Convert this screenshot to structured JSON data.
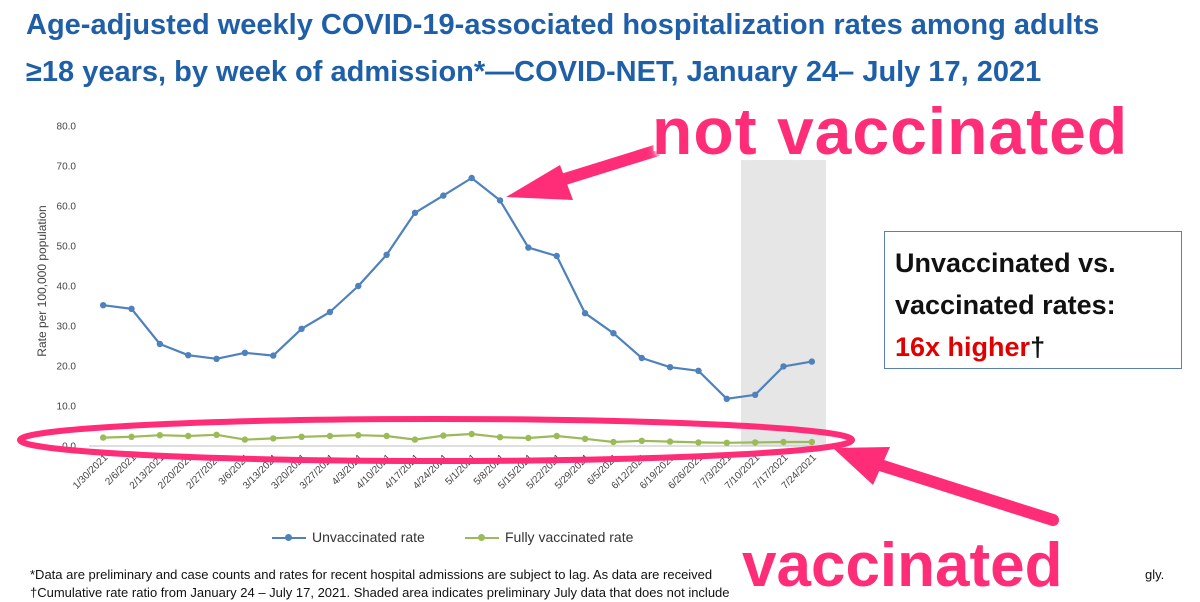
{
  "title": {
    "line1": "Age-adjusted weekly COVID-19-associated hospitalization rates among adults",
    "line2": "≥18 years, by week of admission*—COVID-NET, January 24– July 17, 2021"
  },
  "annotations": {
    "top": "not vaccinated",
    "bottom": "vaccinated"
  },
  "side_box": {
    "line1": "Unvaccinated vs.",
    "line2": "vaccinated rates:",
    "highlight": "16x higher",
    "dagger": "†"
  },
  "footnotes": {
    "line1": "*Data are preliminary and case counts and rates for recent hospital admissions are subject to lag. As data are received",
    "line1_end": "gly.",
    "line2": "†Cumulative rate ratio from January 24 – July 17, 2021. Shaded area indicates preliminary July data that does not include"
  },
  "colors": {
    "unvaccinated": "#4f81bd",
    "vaccinated": "#9bbb59",
    "shade": "#e6e6e6",
    "annotation": "#ff2d78",
    "title": "#1f5fa8",
    "highlight": "#e00000"
  },
  "chart_data": {
    "type": "line",
    "ylabel": "Rate per 100,000 population",
    "xlabel": "",
    "ylim": [
      0,
      80
    ],
    "yticks": [
      "0.0",
      "10.0",
      "20.0",
      "30.0",
      "40.0",
      "50.0",
      "60.0",
      "70.0",
      "80.0"
    ],
    "grid": false,
    "legend_position": "bottom",
    "shaded_region": {
      "from": "7/10/2021",
      "to": "7/24/2021",
      "label": "preliminary July data"
    },
    "categories": [
      "1/30/2021",
      "2/6/2021",
      "2/13/2021",
      "2/20/2021",
      "2/27/2021",
      "3/6/2021",
      "3/13/2021",
      "3/20/2021",
      "3/27/2021",
      "4/3/2021",
      "4/10/2021",
      "4/17/2021",
      "4/24/2021",
      "5/1/2021",
      "5/8/2021",
      "5/15/2021",
      "5/22/2021",
      "5/29/2021",
      "6/5/2021",
      "6/12/2021",
      "6/19/2021",
      "6/26/2021",
      "7/3/2021",
      "7/10/2021",
      "7/17/2021",
      "7/24/2021"
    ],
    "series": [
      {
        "name": "Unvaccinated rate",
        "values": [
          35.2,
          34.3,
          25.5,
          22.7,
          21.8,
          23.3,
          22.6,
          29.3,
          33.5,
          40.0,
          47.8,
          58.3,
          62.6,
          67.0,
          61.4,
          49.6,
          47.5,
          33.2,
          28.2,
          22.0,
          19.7,
          18.8,
          11.8,
          12.8,
          19.9,
          21.1
        ]
      },
      {
        "name": "Fully vaccinated rate",
        "values": [
          2.1,
          2.3,
          2.7,
          2.5,
          2.8,
          1.6,
          1.9,
          2.3,
          2.5,
          2.7,
          2.5,
          1.6,
          2.6,
          3.0,
          2.2,
          2.0,
          2.5,
          1.8,
          1.0,
          1.3,
          1.1,
          0.9,
          0.8,
          0.9,
          1.0,
          1.0
        ]
      }
    ]
  }
}
